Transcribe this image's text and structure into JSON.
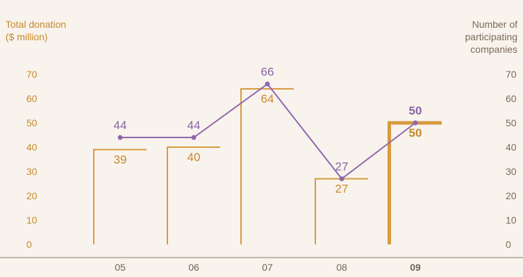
{
  "chart_data": {
    "type": "bar",
    "categories": [
      "05",
      "06",
      "07",
      "08",
      "09"
    ],
    "highlight_category": "09",
    "left_axis": {
      "label": "Total donation\n($ million)",
      "ylim": [
        0,
        70
      ],
      "ticks": [
        "0",
        "10",
        "20",
        "30",
        "40",
        "50",
        "60",
        "70"
      ]
    },
    "right_axis": {
      "label": "Number of\nparticipating\ncompanies",
      "ylim": [
        0,
        70
      ],
      "ticks": [
        "0",
        "10",
        "20",
        "30",
        "40",
        "50",
        "60",
        "70"
      ]
    },
    "series": [
      {
        "kind": "bar",
        "axis": "left",
        "values": [
          39,
          40,
          64,
          27,
          50
        ],
        "labels": [
          "39",
          "40",
          "64",
          "27",
          "50"
        ]
      },
      {
        "kind": "line",
        "axis": "right",
        "values": [
          44,
          44,
          66,
          27,
          50
        ],
        "labels": [
          "44",
          "44",
          "66",
          "27",
          "50"
        ]
      }
    ],
    "colors": {
      "bar": "#d89a3e",
      "line": "#9067ae",
      "baseline": "#8a7a6a",
      "background": "#f8f3ec"
    }
  }
}
